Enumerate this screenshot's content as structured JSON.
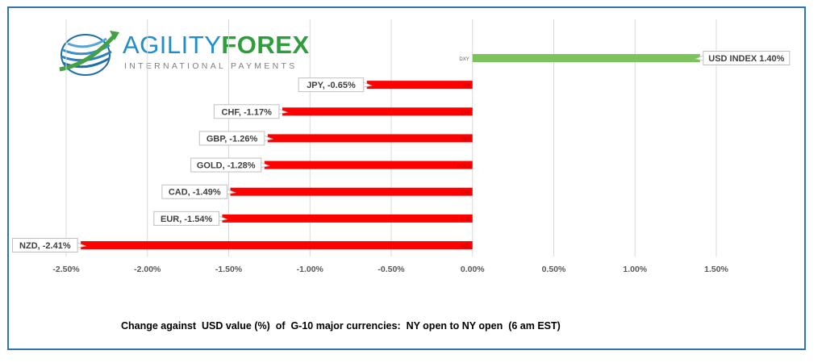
{
  "logo": {
    "name_part1": "AGILITY",
    "name_part2": "FOREX",
    "tagline": "INTERNATIONAL PAYMENTS"
  },
  "colors": {
    "frame": "#2e75b6",
    "positive_bar": "#7dc35b",
    "negative_bar": "#ff0000",
    "grid": "#d9d9d9",
    "tick_text": "#595959"
  },
  "chart_data": {
    "type": "bar",
    "orientation": "horizontal",
    "categories": [
      "DXY",
      "JPY",
      "CHF",
      "GBP",
      "GOLD",
      "CAD",
      "EUR",
      "NZD"
    ],
    "values": [
      1.4,
      -0.65,
      -1.17,
      -1.26,
      -1.28,
      -1.49,
      -1.54,
      -2.41
    ],
    "data_labels": [
      "USD INDEX 1.40%",
      "JPY, -0.65%",
      "CHF, -1.17%",
      "GBP, -1.26%",
      "GOLD, -1.28%",
      "CAD, -1.49%",
      "EUR, -1.54%",
      "NZD, -2.41%"
    ],
    "xlim": [
      -2.5,
      1.5
    ],
    "xticks": [
      -2.5,
      -2.0,
      -1.5,
      -1.0,
      -0.5,
      0.0,
      0.5,
      1.0,
      1.5
    ],
    "xtick_labels": [
      "-2.50%",
      "-2.00%",
      "-1.50%",
      "-1.00%",
      "-0.50%",
      "0.00%",
      "0.50%",
      "1.00%",
      "1.50%"
    ],
    "grid": "vertical",
    "xlabel": "Change against  USD value (%)  of  G-10 major currencies:  NY open to NY open  (6 am EST)"
  }
}
